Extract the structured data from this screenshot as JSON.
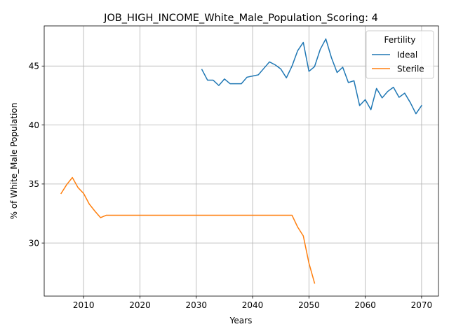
{
  "chart_data": {
    "type": "line",
    "title": "JOB_HIGH_INCOME_White_Male_Population_Scoring: 4",
    "xlabel": "Years",
    "ylabel": "% of White_Male Population",
    "xlim": [
      2003,
      2073
    ],
    "ylim": [
      25.5,
      48.4
    ],
    "xticks": [
      2010,
      2020,
      2030,
      2040,
      2050,
      2060,
      2070
    ],
    "yticks": [
      30,
      35,
      40,
      45
    ],
    "grid": true,
    "legend": {
      "title": "Fertility",
      "placement": "top-right"
    },
    "series": [
      {
        "name": "Ideal",
        "color": "#1f77b4",
        "x": [
          2031,
          2032,
          2033,
          2034,
          2035,
          2036,
          2037,
          2038,
          2039,
          2040,
          2041,
          2042,
          2043,
          2044,
          2045,
          2046,
          2047,
          2048,
          2049,
          2050,
          2051,
          2052,
          2053,
          2054,
          2055,
          2056,
          2057,
          2058,
          2059,
          2060,
          2061,
          2062,
          2063,
          2064,
          2065,
          2066,
          2067,
          2068,
          2069,
          2070
        ],
        "y": [
          44.7,
          43.8,
          43.8,
          43.35,
          43.9,
          43.5,
          43.5,
          43.5,
          44.05,
          44.15,
          44.25,
          44.8,
          45.35,
          45.1,
          44.75,
          44.0,
          45.0,
          46.3,
          47.0,
          44.55,
          44.95,
          46.4,
          47.3,
          45.7,
          44.45,
          44.9,
          43.6,
          43.75,
          41.65,
          42.15,
          41.3,
          43.1,
          42.3,
          42.85,
          43.2,
          42.35,
          42.7,
          41.9,
          40.95,
          41.65
        ]
      },
      {
        "name": "Sterile",
        "color": "#ff7f0e",
        "x": [
          2006,
          2007,
          2008,
          2009,
          2010,
          2011,
          2012,
          2013,
          2014,
          2015,
          2016,
          2017,
          2018,
          2019,
          2020,
          2021,
          2022,
          2023,
          2024,
          2025,
          2026,
          2027,
          2028,
          2029,
          2030,
          2031,
          2032,
          2033,
          2034,
          2035,
          2036,
          2037,
          2038,
          2039,
          2040,
          2041,
          2042,
          2043,
          2044,
          2045,
          2046,
          2047,
          2048,
          2049,
          2050,
          2051
        ],
        "y": [
          34.2,
          34.95,
          35.55,
          34.7,
          34.2,
          33.3,
          32.7,
          32.15,
          32.35,
          32.35,
          32.35,
          32.35,
          32.35,
          32.35,
          32.35,
          32.35,
          32.35,
          32.35,
          32.35,
          32.35,
          32.35,
          32.35,
          32.35,
          32.35,
          32.35,
          32.35,
          32.35,
          32.35,
          32.35,
          32.35,
          32.35,
          32.35,
          32.35,
          32.35,
          32.35,
          32.35,
          32.35,
          32.35,
          32.35,
          32.35,
          32.35,
          32.35,
          31.35,
          30.6,
          28.3,
          26.6
        ]
      }
    ]
  }
}
